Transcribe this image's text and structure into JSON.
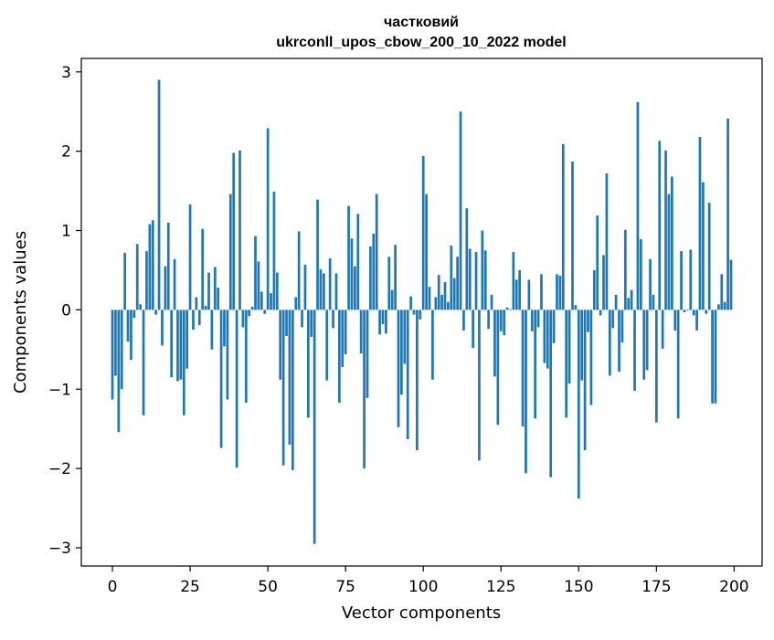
{
  "chart_data": {
    "type": "bar",
    "title": "частковий",
    "subtitle": "ukrconll_upos_cbow_200_10_2022 model",
    "xlabel": "Vector components",
    "ylabel": "Components values",
    "xlim": [
      -10,
      209
    ],
    "ylim": [
      -3.23,
      3.17
    ],
    "xticks": [
      0,
      25,
      50,
      75,
      100,
      125,
      150,
      175,
      200
    ],
    "yticks": [
      -3,
      -2,
      -1,
      0,
      1,
      2,
      3
    ],
    "xtick_labels": [
      "0",
      "25",
      "50",
      "75",
      "100",
      "125",
      "150",
      "175",
      "200"
    ],
    "ytick_labels": [
      "−3",
      "−2",
      "−1",
      "0",
      "1",
      "2",
      "3"
    ],
    "bar_color": "#1f77b4",
    "grid": false,
    "x": [
      0,
      1,
      2,
      3,
      4,
      5,
      6,
      7,
      8,
      9,
      10,
      11,
      12,
      13,
      14,
      15,
      16,
      17,
      18,
      19,
      20,
      21,
      22,
      23,
      24,
      25,
      26,
      27,
      28,
      29,
      30,
      31,
      32,
      33,
      34,
      35,
      36,
      37,
      38,
      39,
      40,
      41,
      42,
      43,
      44,
      45,
      46,
      47,
      48,
      49,
      50,
      51,
      52,
      53,
      54,
      55,
      56,
      57,
      58,
      59,
      60,
      61,
      62,
      63,
      64,
      65,
      66,
      67,
      68,
      69,
      70,
      71,
      72,
      73,
      74,
      75,
      76,
      77,
      78,
      79,
      80,
      81,
      82,
      83,
      84,
      85,
      86,
      87,
      88,
      89,
      90,
      91,
      92,
      93,
      94,
      95,
      96,
      97,
      98,
      99,
      100,
      101,
      102,
      103,
      104,
      105,
      106,
      107,
      108,
      109,
      110,
      111,
      112,
      113,
      114,
      115,
      116,
      117,
      118,
      119,
      120,
      121,
      122,
      123,
      124,
      125,
      126,
      127,
      128,
      129,
      130,
      131,
      132,
      133,
      134,
      135,
      136,
      137,
      138,
      139,
      140,
      141,
      142,
      143,
      144,
      145,
      146,
      147,
      148,
      149,
      150,
      151,
      152,
      153,
      154,
      155,
      156,
      157,
      158,
      159,
      160,
      161,
      162,
      163,
      164,
      165,
      166,
      167,
      168,
      169,
      170,
      171,
      172,
      173,
      174,
      175,
      176,
      177,
      178,
      179,
      180,
      181,
      182,
      183,
      184,
      185,
      186,
      187,
      188,
      189,
      190,
      191,
      192,
      193,
      194,
      195,
      196,
      197,
      198,
      199
    ],
    "values": [
      -1.13,
      -0.83,
      -1.54,
      -1.0,
      0.72,
      -0.4,
      -0.63,
      -0.1,
      0.83,
      0.07,
      -1.33,
      0.74,
      1.08,
      1.13,
      -0.06,
      2.9,
      -0.45,
      0.55,
      1.1,
      -0.85,
      0.64,
      -0.9,
      -0.88,
      -1.33,
      -0.74,
      1.33,
      -0.25,
      0.16,
      -0.19,
      1.02,
      0.05,
      0.47,
      -0.5,
      0.54,
      0.28,
      -1.74,
      -0.46,
      -1.13,
      1.46,
      1.98,
      -1.99,
      2.01,
      -0.22,
      -1.17,
      -0.08,
      0.04,
      0.93,
      0.61,
      0.23,
      -0.05,
      2.29,
      0.21,
      1.49,
      0.47,
      -0.88,
      -1.96,
      -0.33,
      -1.7,
      -2.02,
      0.16,
      0.99,
      -0.22,
      0.57,
      -1.36,
      -0.34,
      -2.95,
      1.39,
      0.51,
      0.46,
      -0.89,
      0.65,
      -0.23,
      0.46,
      -1.17,
      -0.72,
      -0.56,
      1.31,
      0.9,
      0.55,
      1.21,
      -0.55,
      -2.0,
      -1.11,
      0.8,
      0.96,
      1.46,
      -0.31,
      -0.18,
      -0.3,
      0.67,
      0.25,
      0.82,
      -1.48,
      -1.07,
      -0.68,
      -1.63,
      0.17,
      -0.06,
      -1.77,
      -0.12,
      1.94,
      1.46,
      0.29,
      -0.88,
      0.16,
      0.44,
      0.19,
      0.35,
      0.1,
      0.81,
      0.4,
      0.67,
      2.5,
      -0.26,
      1.28,
      0.77,
      -0.48,
      0.73,
      -1.9,
      1.0,
      0.75,
      -0.24,
      0.19,
      -0.84,
      -1.45,
      -0.27,
      -0.32,
      0.03,
      0.01,
      0.73,
      0.38,
      0.5,
      -1.47,
      -2.06,
      0.38,
      -0.27,
      -1.37,
      -0.22,
      0.45,
      -0.67,
      -0.74,
      -2.11,
      -0.42,
      0.45,
      0.43,
      2.09,
      -1.36,
      -0.93,
      1.87,
      0.06,
      -2.38,
      -0.89,
      -1.77,
      -0.28,
      -1.2,
      0.5,
      1.19,
      -0.07,
      0.69,
      1.72,
      -0.83,
      -0.23,
      0.19,
      -0.78,
      -0.41,
      1.01,
      0.15,
      0.25,
      -1.02,
      2.62,
      0.89,
      -0.88,
      -0.76,
      0.64,
      0.19,
      -1.42,
      2.13,
      -0.49,
      2.01,
      1.46,
      1.68,
      -0.26,
      -1.37,
      0.74,
      -0.03,
      -0.01,
      0.76,
      -0.07,
      -0.26,
      2.18,
      1.61,
      -0.05,
      1.35,
      -1.18,
      -1.18,
      0.07,
      0.45,
      0.1,
      2.41,
      0.63
    ]
  }
}
